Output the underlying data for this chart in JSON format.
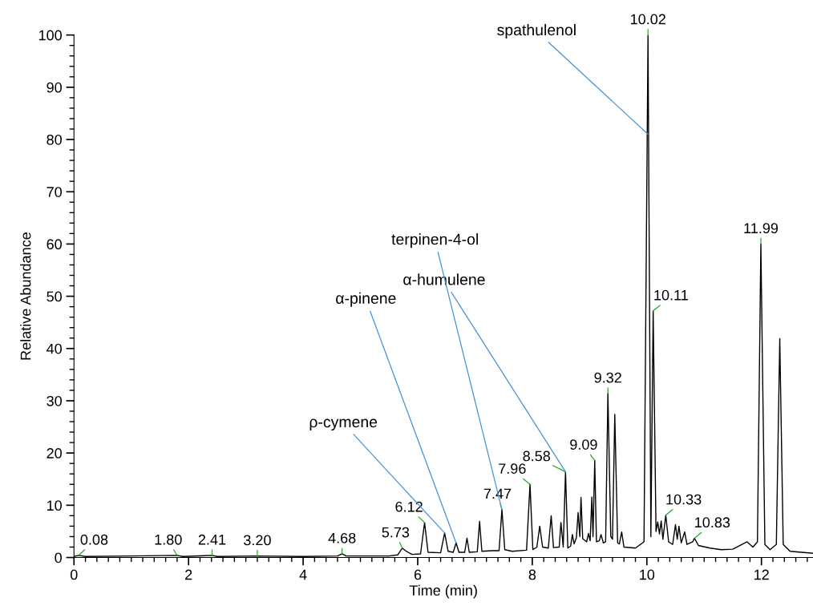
{
  "chart_data": {
    "type": "line",
    "xlabel": "Time (min)",
    "ylabel": "Relative Abundance",
    "xlim": [
      0,
      12.9
    ],
    "ylim": [
      0,
      100
    ],
    "xticks": [
      0,
      2,
      4,
      6,
      8,
      10,
      12,
      {
        "value": 0.2,
        "label": null
      },
      {
        "value": 0.4,
        "label": null
      },
      {
        "value": 0.6,
        "label": null
      },
      {
        "value": 0.8,
        "label": null
      },
      {
        "value": 1,
        "label": null
      },
      {
        "value": 1.2,
        "label": null
      },
      {
        "value": 1.4,
        "label": null
      },
      {
        "value": 1.6,
        "label": null
      },
      {
        "value": 1.8,
        "label": null
      },
      {
        "value": 2.2,
        "label": null
      },
      {
        "value": 2.4,
        "label": null
      },
      {
        "value": 2.6,
        "label": null
      },
      {
        "value": 2.8,
        "label": null
      },
      {
        "value": 3,
        "label": null
      },
      {
        "value": 3.2,
        "label": null
      },
      {
        "value": 3.4,
        "label": null
      },
      {
        "value": 3.6,
        "label": null
      },
      {
        "value": 3.8,
        "label": null
      },
      {
        "value": 4.2,
        "label": null
      },
      {
        "value": 4.4,
        "label": null
      },
      {
        "value": 4.6,
        "label": null
      },
      {
        "value": 4.8,
        "label": null
      },
      {
        "value": 5,
        "label": null
      },
      {
        "value": 5.2,
        "label": null
      },
      {
        "value": 5.4,
        "label": null
      },
      {
        "value": 5.6,
        "label": null
      },
      {
        "value": 5.8,
        "label": null
      },
      {
        "value": 6.2,
        "label": null
      },
      {
        "value": 6.4,
        "label": null
      },
      {
        "value": 6.6,
        "label": null
      },
      {
        "value": 6.8,
        "label": null
      },
      {
        "value": 7,
        "label": null
      },
      {
        "value": 7.2,
        "label": null
      },
      {
        "value": 7.4,
        "label": null
      },
      {
        "value": 7.6,
        "label": null
      },
      {
        "value": 7.8,
        "label": null
      },
      {
        "value": 8.2,
        "label": null
      },
      {
        "value": 8.4,
        "label": null
      },
      {
        "value": 8.6,
        "label": null
      },
      {
        "value": 8.8,
        "label": null
      },
      {
        "value": 9,
        "label": null
      },
      {
        "value": 9.2,
        "label": null
      },
      {
        "value": 9.4,
        "label": null
      },
      {
        "value": 9.6,
        "label": null
      },
      {
        "value": 9.8,
        "label": null
      },
      {
        "value": 10.2,
        "label": null
      },
      {
        "value": 10.4,
        "label": null
      },
      {
        "value": 10.6,
        "label": null
      },
      {
        "value": 10.8,
        "label": null
      },
      {
        "value": 11,
        "label": null
      },
      {
        "value": 11.2,
        "label": null
      },
      {
        "value": 11.4,
        "label": null
      },
      {
        "value": 11.6,
        "label": null
      },
      {
        "value": 11.8,
        "label": null
      },
      {
        "value": 12.2,
        "label": null
      },
      {
        "value": 12.4,
        "label": null
      },
      {
        "value": 12.6,
        "label": null
      },
      {
        "value": 12.8,
        "label": null
      }
    ],
    "yticks": [
      0,
      10,
      20,
      30,
      40,
      50,
      60,
      70,
      80,
      90,
      100,
      {
        "value": 2,
        "label": null
      },
      {
        "value": 4,
        "label": null
      },
      {
        "value": 6,
        "label": null
      },
      {
        "value": 8,
        "label": null
      },
      {
        "value": 12,
        "label": null
      },
      {
        "value": 14,
        "label": null
      },
      {
        "value": 16,
        "label": null
      },
      {
        "value": 18,
        "label": null
      },
      {
        "value": 22,
        "label": null
      },
      {
        "value": 24,
        "label": null
      },
      {
        "value": 26,
        "label": null
      },
      {
        "value": 28,
        "label": null
      },
      {
        "value": 32,
        "label": null
      },
      {
        "value": 34,
        "label": null
      },
      {
        "value": 36,
        "label": null
      },
      {
        "value": 38,
        "label": null
      },
      {
        "value": 42,
        "label": null
      },
      {
        "value": 44,
        "label": null
      },
      {
        "value": 46,
        "label": null
      },
      {
        "value": 48,
        "label": null
      },
      {
        "value": 52,
        "label": null
      },
      {
        "value": 54,
        "label": null
      },
      {
        "value": 56,
        "label": null
      },
      {
        "value": 58,
        "label": null
      },
      {
        "value": 62,
        "label": null
      },
      {
        "value": 64,
        "label": null
      },
      {
        "value": 66,
        "label": null
      },
      {
        "value": 68,
        "label": null
      },
      {
        "value": 72,
        "label": null
      },
      {
        "value": 74,
        "label": null
      },
      {
        "value": 76,
        "label": null
      },
      {
        "value": 78,
        "label": null
      },
      {
        "value": 82,
        "label": null
      },
      {
        "value": 84,
        "label": null
      },
      {
        "value": 86,
        "label": null
      },
      {
        "value": 88,
        "label": null
      },
      {
        "value": 92,
        "label": null
      },
      {
        "value": 94,
        "label": null
      },
      {
        "value": 96,
        "label": null
      },
      {
        "value": 98,
        "label": null
      }
    ],
    "grid": false,
    "marker": "none",
    "line_style": "solid",
    "series": [
      {
        "color": "#000000",
        "x": [
          0.0,
          0.08,
          0.2,
          1.0,
          1.8,
          1.9,
          2.41,
          2.5,
          3.2,
          4.0,
          4.6,
          4.68,
          4.75,
          5.5,
          5.65,
          5.73,
          5.8,
          5.9,
          6.05,
          6.12,
          6.18,
          6.4,
          6.47,
          6.53,
          6.62,
          6.67,
          6.72,
          6.82,
          6.86,
          6.9,
          7.04,
          7.08,
          7.12,
          7.3,
          7.42,
          7.47,
          7.52,
          7.65,
          7.9,
          7.96,
          8.01,
          8.08,
          8.13,
          8.18,
          8.28,
          8.33,
          8.37,
          8.47,
          8.5,
          8.54,
          8.58,
          8.62,
          8.67,
          8.7,
          8.73,
          8.77,
          8.8,
          8.83,
          8.85,
          8.88,
          8.95,
          8.98,
          9.01,
          9.04,
          9.06,
          9.09,
          9.12,
          9.17,
          9.2,
          9.24,
          9.28,
          9.32,
          9.37,
          9.4,
          9.44,
          9.49,
          9.52,
          9.56,
          9.6,
          9.8,
          9.95,
          10.02,
          10.07,
          10.11,
          10.16,
          10.19,
          10.22,
          10.25,
          10.28,
          10.33,
          10.38,
          10.45,
          10.5,
          10.53,
          10.56,
          10.6,
          10.66,
          10.7,
          10.8,
          10.83,
          10.9,
          11.1,
          11.3,
          11.5,
          11.75,
          11.85,
          11.93,
          11.99,
          12.06,
          12.15,
          12.26,
          12.32,
          12.38,
          12.5,
          12.7,
          12.9
        ],
        "values": [
          0.2,
          0.4,
          0.2,
          0.3,
          0.4,
          0.2,
          0.4,
          0.2,
          0.3,
          0.2,
          0.3,
          0.7,
          0.3,
          0.3,
          0.5,
          1.8,
          1.2,
          0.6,
          0.7,
          6.7,
          1.0,
          0.9,
          4.7,
          1.2,
          1.0,
          2.8,
          1.0,
          1.0,
          3.7,
          1.0,
          1.1,
          6.9,
          1.2,
          1.3,
          1.3,
          9.2,
          1.5,
          1.2,
          1.4,
          14.0,
          1.5,
          2.0,
          6.0,
          2.0,
          1.8,
          8.0,
          1.9,
          2.0,
          6.7,
          2.0,
          16.4,
          1.8,
          2.2,
          4.4,
          2.6,
          3.8,
          8.6,
          4.0,
          11.5,
          3.6,
          3.0,
          4.6,
          3.2,
          11.6,
          4.0,
          18.6,
          3.0,
          3.2,
          4.4,
          2.8,
          3.0,
          31.4,
          4.0,
          3.5,
          27.4,
          2.8,
          2.6,
          4.9,
          2.0,
          1.8,
          3.0,
          100,
          4.0,
          47.2,
          5.0,
          6.8,
          4.5,
          7.0,
          3.5,
          8.1,
          3.0,
          2.5,
          6.3,
          3.5,
          6.0,
          2.8,
          4.9,
          2.5,
          3.0,
          3.7,
          2.3,
          1.8,
          1.5,
          1.6,
          3.0,
          2.0,
          3.0,
          60,
          2.5,
          1.5,
          2.5,
          41.9,
          2.5,
          1.2,
          1.0,
          0.8
        ]
      }
    ],
    "annotations": [
      {
        "text": "0.08",
        "x": 0.08,
        "y": 0.4
      },
      {
        "text": "1.80",
        "x": 1.8,
        "y": 0.4
      },
      {
        "text": "2.41",
        "x": 2.41,
        "y": 0.4
      },
      {
        "text": "3.20",
        "x": 3.2,
        "y": 0.3
      },
      {
        "text": "4.68",
        "x": 4.68,
        "y": 0.7
      },
      {
        "text": "5.73",
        "x": 5.73,
        "y": 1.8
      },
      {
        "text": "6.12",
        "x": 6.12,
        "y": 6.7
      },
      {
        "text": "7.47",
        "x": 7.47,
        "y": 9.2
      },
      {
        "text": "7.96",
        "x": 7.96,
        "y": 14.0
      },
      {
        "text": "8.58",
        "x": 8.58,
        "y": 16.4
      },
      {
        "text": "9.09",
        "x": 9.09,
        "y": 18.6
      },
      {
        "text": "9.32",
        "x": 9.32,
        "y": 31.4
      },
      {
        "text": "10.02",
        "x": 10.02,
        "y": 100
      },
      {
        "text": "10.11",
        "x": 10.11,
        "y": 47.2
      },
      {
        "text": "10.33",
        "x": 10.33,
        "y": 8.1
      },
      {
        "text": "10.83",
        "x": 10.83,
        "y": 3.7
      },
      {
        "text": "11.99",
        "x": 11.99,
        "y": 60
      },
      {
        "text": "spathulenol",
        "x": 10.02,
        "y": 81
      },
      {
        "text": "α-humulene",
        "x": 8.58,
        "y": 16.4
      },
      {
        "text": "terpinen-4-ol",
        "x": 7.47,
        "y": 9.2
      },
      {
        "text": "α-pinene",
        "x": 6.67,
        "y": 2.8
      },
      {
        "text": "ρ-cymene",
        "x": 6.47,
        "y": 4.7
      }
    ]
  }
}
